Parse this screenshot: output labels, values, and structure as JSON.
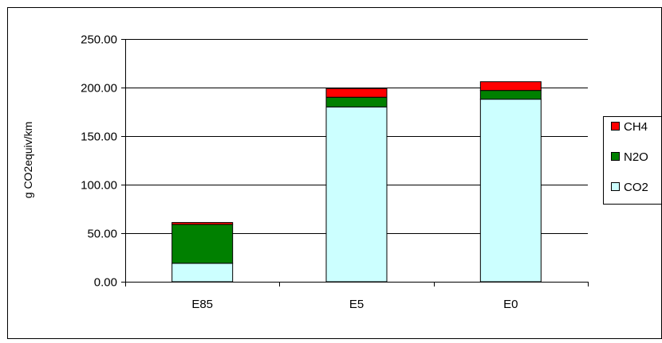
{
  "chart_data": {
    "type": "bar",
    "stacked": true,
    "categories": [
      "E85",
      "E5",
      "E0"
    ],
    "series": [
      {
        "name": "CO2",
        "color": "#ccffff",
        "values": [
          19,
          180,
          188
        ]
      },
      {
        "name": "N2O",
        "color": "#008000",
        "values": [
          40,
          10,
          9
        ]
      },
      {
        "name": "CH4",
        "color": "#ff0000",
        "values": [
          2,
          9,
          9
        ]
      }
    ],
    "ylabel": "g CO2equiv/km",
    "ylim": [
      0,
      250
    ],
    "yticks": [
      0,
      50,
      100,
      150,
      200,
      250
    ],
    "ytick_labels": [
      "0.00",
      "50.00",
      "100.00",
      "150.00",
      "200.00",
      "250.00"
    ],
    "grid": true,
    "legend": {
      "placement": "right",
      "entries": [
        "CH4",
        "N2O",
        "CO2"
      ]
    }
  }
}
